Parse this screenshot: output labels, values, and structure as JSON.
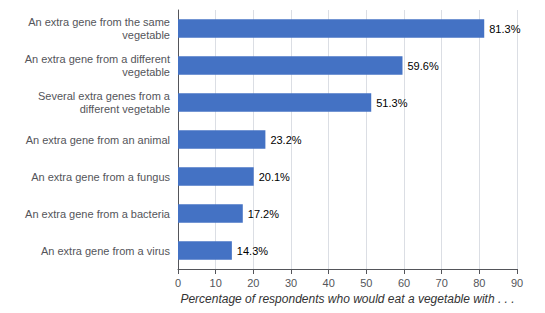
{
  "chart_data": {
    "type": "bar",
    "orientation": "horizontal",
    "categories": [
      "An extra gene from a virus",
      "An extra gene from a bacteria",
      "An extra gene from a fungus",
      "An extra gene from an animal",
      "Several extra genes from a\ndifferent vegetable",
      "An extra gene from a different\nvegetable",
      "An extra gene from the same\nvegetable"
    ],
    "values": [
      14.3,
      17.2,
      20.1,
      23.2,
      51.3,
      59.6,
      81.3
    ],
    "value_labels": [
      "14.3%",
      "17.2%",
      "20.1%",
      "23.2%",
      "51.3%",
      "59.6%",
      "81.3%"
    ],
    "data_labels": true,
    "color": "#4472C4",
    "xlabel": "Percentage of respondents who would eat a vegetable with . . .",
    "xlim": [
      0,
      90
    ],
    "xticks": [
      0,
      10,
      20,
      30,
      40,
      50,
      60,
      70,
      80,
      90
    ],
    "grid": true
  }
}
